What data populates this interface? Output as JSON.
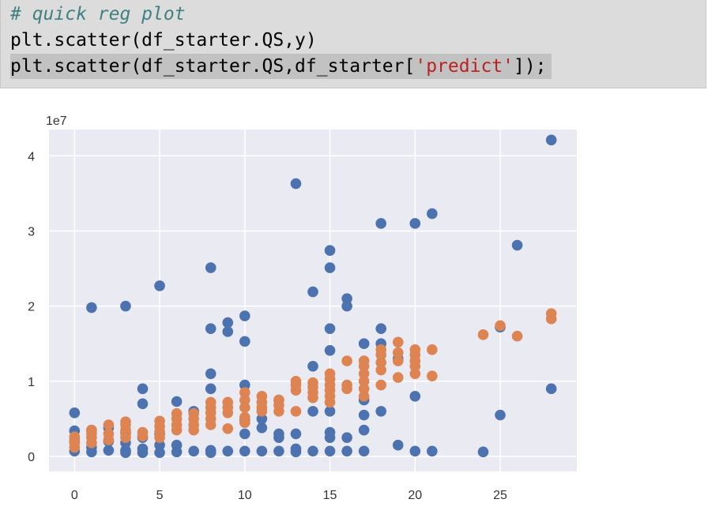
{
  "code": {
    "comment": "# quick reg plot",
    "line2": "plt.scatter(df_starter.QS,y)",
    "line3_pre": "plt.scatter(df_starter.QS,df_starter[",
    "line3_str": "'predict'",
    "line3_post": "]);"
  },
  "colors": {
    "series_actual": "#4c72b0",
    "series_predict": "#dd8452",
    "plot_bg": "#eaeaf2",
    "grid": "#ffffff"
  },
  "chart_data": {
    "type": "scatter",
    "offset_label": "1e7",
    "xlim": [
      -1.5,
      29.5
    ],
    "ylim": [
      -0.2,
      4.35
    ],
    "xticks": [
      0,
      5,
      10,
      15,
      20,
      25
    ],
    "yticks": [
      0,
      1,
      2,
      3,
      4
    ],
    "grid": true,
    "series": [
      {
        "color": "#4c72b0",
        "points": [
          [
            0,
            0.58
          ],
          [
            0,
            0.34
          ],
          [
            0,
            0.2
          ],
          [
            0,
            0.07
          ],
          [
            1,
            1.98
          ],
          [
            1,
            0.35
          ],
          [
            1,
            0.12
          ],
          [
            1,
            0.06
          ],
          [
            2,
            0.38
          ],
          [
            2,
            0.2
          ],
          [
            2,
            0.08
          ],
          [
            3,
            2.0
          ],
          [
            3,
            0.32
          ],
          [
            3,
            0.18
          ],
          [
            3,
            0.08
          ],
          [
            3,
            0.05
          ],
          [
            4,
            0.9
          ],
          [
            4,
            0.7
          ],
          [
            4,
            0.25
          ],
          [
            4,
            0.1
          ],
          [
            4,
            0.05
          ],
          [
            5,
            2.27
          ],
          [
            5,
            0.3
          ],
          [
            5,
            0.15
          ],
          [
            5,
            0.05
          ],
          [
            6,
            0.73
          ],
          [
            6,
            0.15
          ],
          [
            6,
            0.06
          ],
          [
            7,
            0.6
          ],
          [
            7,
            0.07
          ],
          [
            8,
            2.51
          ],
          [
            8,
            1.7
          ],
          [
            8,
            1.1
          ],
          [
            8,
            0.9
          ],
          [
            8,
            0.08
          ],
          [
            8,
            0.05
          ],
          [
            9,
            1.78
          ],
          [
            9,
            1.66
          ],
          [
            9,
            0.07
          ],
          [
            10,
            1.87
          ],
          [
            10,
            1.53
          ],
          [
            10,
            0.95
          ],
          [
            10,
            0.48
          ],
          [
            10,
            0.3
          ],
          [
            10,
            0.07
          ],
          [
            11,
            0.5
          ],
          [
            11,
            0.38
          ],
          [
            11,
            0.07
          ],
          [
            12,
            0.75
          ],
          [
            12,
            0.3
          ],
          [
            12,
            0.25
          ],
          [
            12,
            0.07
          ],
          [
            13,
            3.63
          ],
          [
            13,
            0.3
          ],
          [
            13,
            0.1
          ],
          [
            13,
            0.06
          ],
          [
            14,
            2.19
          ],
          [
            14,
            1.2
          ],
          [
            14,
            0.6
          ],
          [
            14,
            0.07
          ],
          [
            15,
            2.74
          ],
          [
            15,
            2.51
          ],
          [
            15,
            1.7
          ],
          [
            15,
            1.41
          ],
          [
            15,
            0.6
          ],
          [
            15,
            0.32
          ],
          [
            15,
            0.25
          ],
          [
            15,
            0.07
          ],
          [
            16,
            2.1
          ],
          [
            16,
            2.0
          ],
          [
            16,
            0.25
          ],
          [
            16,
            0.07
          ],
          [
            17,
            1.5
          ],
          [
            17,
            0.75
          ],
          [
            17,
            0.55
          ],
          [
            17,
            0.35
          ],
          [
            17,
            0.07
          ],
          [
            18,
            3.1
          ],
          [
            18,
            1.7
          ],
          [
            18,
            1.5
          ],
          [
            18,
            0.6
          ],
          [
            19,
            1.3
          ],
          [
            19,
            0.15
          ],
          [
            20,
            3.1
          ],
          [
            20,
            0.8
          ],
          [
            20,
            0.07
          ],
          [
            21,
            3.23
          ],
          [
            21,
            0.07
          ],
          [
            24,
            0.06
          ],
          [
            25,
            1.72
          ],
          [
            25,
            0.55
          ],
          [
            26,
            2.81
          ],
          [
            28,
            4.21
          ],
          [
            28,
            0.9
          ]
        ]
      },
      {
        "color": "#dd8452",
        "points": [
          [
            0,
            0.12
          ],
          [
            0,
            0.18
          ],
          [
            0,
            0.22
          ],
          [
            0,
            0.26
          ],
          [
            1,
            0.18
          ],
          [
            1,
            0.25
          ],
          [
            1,
            0.3
          ],
          [
            1,
            0.35
          ],
          [
            2,
            0.22
          ],
          [
            2,
            0.3
          ],
          [
            2,
            0.42
          ],
          [
            3,
            0.25
          ],
          [
            3,
            0.3
          ],
          [
            3,
            0.35
          ],
          [
            3,
            0.42
          ],
          [
            3,
            0.46
          ],
          [
            4,
            0.27
          ],
          [
            4,
            0.32
          ],
          [
            5,
            0.25
          ],
          [
            5,
            0.33
          ],
          [
            5,
            0.4
          ],
          [
            5,
            0.47
          ],
          [
            6,
            0.35
          ],
          [
            6,
            0.42
          ],
          [
            6,
            0.5
          ],
          [
            6,
            0.57
          ],
          [
            7,
            0.35
          ],
          [
            7,
            0.42
          ],
          [
            7,
            0.5
          ],
          [
            7,
            0.57
          ],
          [
            8,
            0.42
          ],
          [
            8,
            0.5
          ],
          [
            8,
            0.58
          ],
          [
            8,
            0.65
          ],
          [
            8,
            0.72
          ],
          [
            9,
            0.37
          ],
          [
            9,
            0.58
          ],
          [
            9,
            0.65
          ],
          [
            9,
            0.72
          ],
          [
            10,
            0.45
          ],
          [
            10,
            0.52
          ],
          [
            10,
            0.65
          ],
          [
            10,
            0.75
          ],
          [
            10,
            0.85
          ],
          [
            11,
            0.6
          ],
          [
            11,
            0.65
          ],
          [
            11,
            0.72
          ],
          [
            11,
            0.8
          ],
          [
            12,
            0.6
          ],
          [
            12,
            0.68
          ],
          [
            12,
            0.75
          ],
          [
            13,
            0.6
          ],
          [
            13,
            0.88
          ],
          [
            13,
            0.95
          ],
          [
            13,
            1.0
          ],
          [
            14,
            0.78
          ],
          [
            14,
            0.85
          ],
          [
            14,
            0.92
          ],
          [
            14,
            0.98
          ],
          [
            15,
            0.72
          ],
          [
            15,
            0.8
          ],
          [
            15,
            0.88
          ],
          [
            15,
            0.95
          ],
          [
            15,
            1.03
          ],
          [
            15,
            1.1
          ],
          [
            16,
            0.9
          ],
          [
            16,
            0.95
          ],
          [
            16,
            1.27
          ],
          [
            17,
            0.8
          ],
          [
            17,
            0.9
          ],
          [
            17,
            1.0
          ],
          [
            17,
            1.1
          ],
          [
            17,
            1.2
          ],
          [
            17,
            1.27
          ],
          [
            18,
            0.95
          ],
          [
            18,
            1.15
          ],
          [
            18,
            1.25
          ],
          [
            18,
            1.35
          ],
          [
            18,
            1.42
          ],
          [
            19,
            1.05
          ],
          [
            19,
            1.27
          ],
          [
            19,
            1.38
          ],
          [
            19,
            1.52
          ],
          [
            20,
            1.1
          ],
          [
            20,
            1.2
          ],
          [
            20,
            1.27
          ],
          [
            20,
            1.35
          ],
          [
            20,
            1.42
          ],
          [
            21,
            1.07
          ],
          [
            21,
            1.42
          ],
          [
            24,
            1.62
          ],
          [
            25,
            1.74
          ],
          [
            26,
            1.6
          ],
          [
            28,
            1.83
          ],
          [
            28,
            1.9
          ]
        ]
      }
    ]
  }
}
